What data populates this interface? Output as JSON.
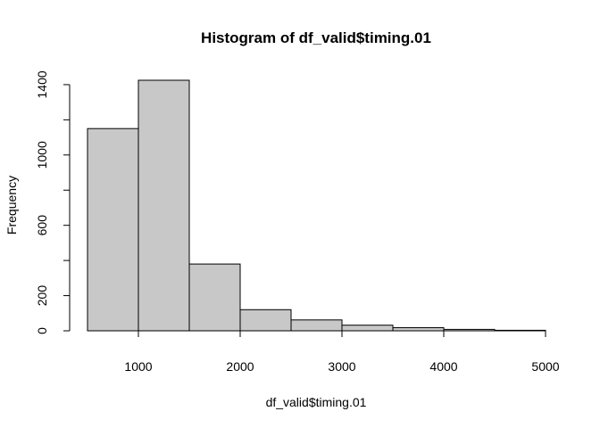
{
  "chart_data": {
    "type": "bar",
    "title": "Histogram of df_valid$timing.01",
    "xlabel": "df_valid$timing.01",
    "ylabel": "Frequency",
    "bins": [
      {
        "start": 500,
        "end": 1000,
        "count": 1150
      },
      {
        "start": 1000,
        "end": 1500,
        "count": 1425
      },
      {
        "start": 1500,
        "end": 2000,
        "count": 380
      },
      {
        "start": 2000,
        "end": 2500,
        "count": 120
      },
      {
        "start": 2500,
        "end": 3000,
        "count": 62
      },
      {
        "start": 3000,
        "end": 3500,
        "count": 32
      },
      {
        "start": 3500,
        "end": 4000,
        "count": 18
      },
      {
        "start": 4000,
        "end": 4500,
        "count": 8
      },
      {
        "start": 4500,
        "end": 5000,
        "count": 3
      }
    ],
    "xlim": [
      500,
      5000
    ],
    "ylim": [
      0,
      1425
    ],
    "x_ticks": [
      "1000",
      "2000",
      "3000",
      "4000",
      "5000"
    ],
    "y_ticks": [
      "0",
      "200",
      "600",
      "1000",
      "1400"
    ],
    "grid": false,
    "bar_color": "#c8c8c8",
    "edge_color": "#000000"
  }
}
